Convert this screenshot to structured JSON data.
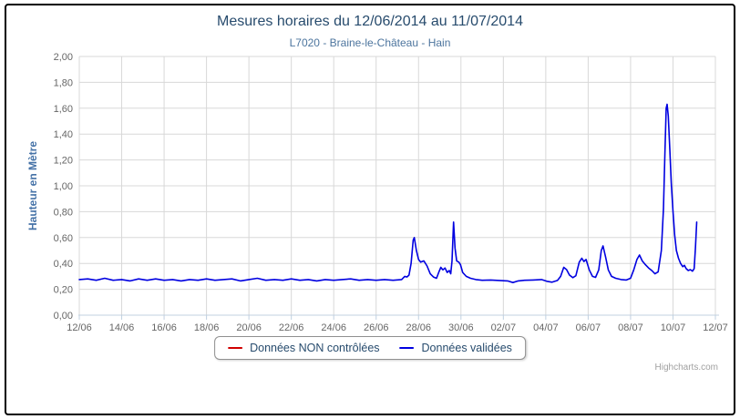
{
  "chart": {
    "title": "Mesures horaires du 12/06/2014 au 11/07/2014",
    "subtitle": "L7020 - Braine-le-Château - Hain",
    "credits_label": "Highcharts.com",
    "colors": {
      "title": "#274b6d",
      "subtitle": "#4d759e",
      "axis_title": "#4572a7",
      "tick_label": "#666666",
      "grid": "#d8d8d8",
      "axis_line": "#c0d0e0",
      "legend_border": "#909090",
      "outer_border": "#000000",
      "series_red": "#d00000",
      "series_blue": "#0000e0",
      "credits": "#a0a0a0"
    }
  },
  "chart_data": {
    "type": "line",
    "title": "Mesures horaires du 12/06/2014 au 11/07/2014",
    "subtitle": "L7020 - Braine-le-Château - Hain",
    "xlabel": "",
    "ylabel": "Hauteur en Mètre",
    "x_unit": "days since 12/06/2014 00:00",
    "xlim": [
      0,
      30
    ],
    "ylim": [
      0,
      2.0
    ],
    "grid": true,
    "legend_position": "bottom",
    "x_ticks": [
      {
        "d": 0,
        "label": "12/06"
      },
      {
        "d": 2,
        "label": "14/06"
      },
      {
        "d": 4,
        "label": "16/06"
      },
      {
        "d": 6,
        "label": "18/06"
      },
      {
        "d": 8,
        "label": "20/06"
      },
      {
        "d": 10,
        "label": "22/06"
      },
      {
        "d": 12,
        "label": "24/06"
      },
      {
        "d": 14,
        "label": "26/06"
      },
      {
        "d": 16,
        "label": "28/06"
      },
      {
        "d": 18,
        "label": "30/06"
      },
      {
        "d": 20,
        "label": "02/07"
      },
      {
        "d": 22,
        "label": "04/07"
      },
      {
        "d": 24,
        "label": "06/07"
      },
      {
        "d": 26,
        "label": "08/07"
      },
      {
        "d": 28,
        "label": "10/07"
      },
      {
        "d": 30,
        "label": "12/07"
      }
    ],
    "y_ticks": [
      {
        "v": 0.0,
        "label": "0,00"
      },
      {
        "v": 0.2,
        "label": "0,20"
      },
      {
        "v": 0.4,
        "label": "0,40"
      },
      {
        "v": 0.6,
        "label": "0,60"
      },
      {
        "v": 0.8,
        "label": "0,80"
      },
      {
        "v": 1.0,
        "label": "1,00"
      },
      {
        "v": 1.2,
        "label": "1,20"
      },
      {
        "v": 1.4,
        "label": "1,40"
      },
      {
        "v": 1.6,
        "label": "1,60"
      },
      {
        "v": 1.8,
        "label": "1,80"
      },
      {
        "v": 2.0,
        "label": "2,00"
      }
    ],
    "series": [
      {
        "name": "Données NON contrôlées",
        "color": "#d00000",
        "points": []
      },
      {
        "name": "Données validées",
        "color": "#0000e0",
        "points": [
          [
            0,
            0.275
          ],
          [
            0.4,
            0.28
          ],
          [
            0.8,
            0.27
          ],
          [
            1.2,
            0.285
          ],
          [
            1.6,
            0.27
          ],
          [
            2,
            0.275
          ],
          [
            2.4,
            0.265
          ],
          [
            2.8,
            0.28
          ],
          [
            3.2,
            0.27
          ],
          [
            3.6,
            0.28
          ],
          [
            4,
            0.27
          ],
          [
            4.4,
            0.275
          ],
          [
            4.8,
            0.265
          ],
          [
            5.2,
            0.275
          ],
          [
            5.6,
            0.27
          ],
          [
            6,
            0.28
          ],
          [
            6.4,
            0.27
          ],
          [
            6.8,
            0.275
          ],
          [
            7.2,
            0.28
          ],
          [
            7.6,
            0.265
          ],
          [
            8,
            0.275
          ],
          [
            8.4,
            0.285
          ],
          [
            8.8,
            0.27
          ],
          [
            9.2,
            0.275
          ],
          [
            9.6,
            0.27
          ],
          [
            10,
            0.28
          ],
          [
            10.4,
            0.27
          ],
          [
            10.8,
            0.275
          ],
          [
            11.2,
            0.265
          ],
          [
            11.6,
            0.275
          ],
          [
            12,
            0.27
          ],
          [
            12.4,
            0.275
          ],
          [
            12.8,
            0.28
          ],
          [
            13.2,
            0.27
          ],
          [
            13.6,
            0.275
          ],
          [
            14,
            0.27
          ],
          [
            14.4,
            0.275
          ],
          [
            14.8,
            0.27
          ],
          [
            15.2,
            0.275
          ],
          [
            15.35,
            0.3
          ],
          [
            15.45,
            0.295
          ],
          [
            15.55,
            0.31
          ],
          [
            15.65,
            0.4
          ],
          [
            15.75,
            0.58
          ],
          [
            15.8,
            0.6
          ],
          [
            15.9,
            0.5
          ],
          [
            16,
            0.43
          ],
          [
            16.1,
            0.41
          ],
          [
            16.25,
            0.42
          ],
          [
            16.4,
            0.38
          ],
          [
            16.55,
            0.32
          ],
          [
            16.7,
            0.295
          ],
          [
            16.85,
            0.285
          ],
          [
            16.95,
            0.33
          ],
          [
            17.05,
            0.37
          ],
          [
            17.15,
            0.35
          ],
          [
            17.25,
            0.365
          ],
          [
            17.35,
            0.33
          ],
          [
            17.45,
            0.345
          ],
          [
            17.52,
            0.32
          ],
          [
            17.58,
            0.42
          ],
          [
            17.65,
            0.72
          ],
          [
            17.72,
            0.52
          ],
          [
            17.8,
            0.42
          ],
          [
            17.9,
            0.41
          ],
          [
            17.98,
            0.39
          ],
          [
            18.08,
            0.33
          ],
          [
            18.25,
            0.3
          ],
          [
            18.45,
            0.285
          ],
          [
            18.7,
            0.275
          ],
          [
            19,
            0.27
          ],
          [
            19.4,
            0.272
          ],
          [
            19.8,
            0.268
          ],
          [
            20.2,
            0.265
          ],
          [
            20.45,
            0.252
          ],
          [
            20.7,
            0.265
          ],
          [
            21,
            0.27
          ],
          [
            21.4,
            0.272
          ],
          [
            21.8,
            0.275
          ],
          [
            22.05,
            0.262
          ],
          [
            22.3,
            0.255
          ],
          [
            22.55,
            0.268
          ],
          [
            22.7,
            0.3
          ],
          [
            22.85,
            0.37
          ],
          [
            22.98,
            0.352
          ],
          [
            23.12,
            0.31
          ],
          [
            23.28,
            0.29
          ],
          [
            23.42,
            0.305
          ],
          [
            23.58,
            0.41
          ],
          [
            23.7,
            0.44
          ],
          [
            23.8,
            0.415
          ],
          [
            23.9,
            0.43
          ],
          [
            24.05,
            0.35
          ],
          [
            24.2,
            0.3
          ],
          [
            24.35,
            0.292
          ],
          [
            24.5,
            0.35
          ],
          [
            24.62,
            0.5
          ],
          [
            24.7,
            0.535
          ],
          [
            24.82,
            0.45
          ],
          [
            24.95,
            0.35
          ],
          [
            25.1,
            0.3
          ],
          [
            25.3,
            0.285
          ],
          [
            25.55,
            0.275
          ],
          [
            25.8,
            0.272
          ],
          [
            26,
            0.285
          ],
          [
            26.15,
            0.35
          ],
          [
            26.3,
            0.43
          ],
          [
            26.42,
            0.465
          ],
          [
            26.55,
            0.42
          ],
          [
            26.7,
            0.39
          ],
          [
            26.85,
            0.365
          ],
          [
            27,
            0.345
          ],
          [
            27.15,
            0.32
          ],
          [
            27.3,
            0.335
          ],
          [
            27.45,
            0.5
          ],
          [
            27.55,
            0.82
          ],
          [
            27.62,
            1.25
          ],
          [
            27.68,
            1.6
          ],
          [
            27.72,
            1.63
          ],
          [
            27.78,
            1.54
          ],
          [
            27.85,
            1.28
          ],
          [
            27.92,
            1.02
          ],
          [
            28,
            0.8
          ],
          [
            28.08,
            0.62
          ],
          [
            28.16,
            0.5
          ],
          [
            28.26,
            0.44
          ],
          [
            28.36,
            0.4
          ],
          [
            28.46,
            0.375
          ],
          [
            28.54,
            0.385
          ],
          [
            28.62,
            0.36
          ],
          [
            28.72,
            0.345
          ],
          [
            28.82,
            0.352
          ],
          [
            28.92,
            0.34
          ],
          [
            29,
            0.36
          ],
          [
            29.06,
            0.52
          ],
          [
            29.12,
            0.72
          ]
        ]
      }
    ]
  }
}
